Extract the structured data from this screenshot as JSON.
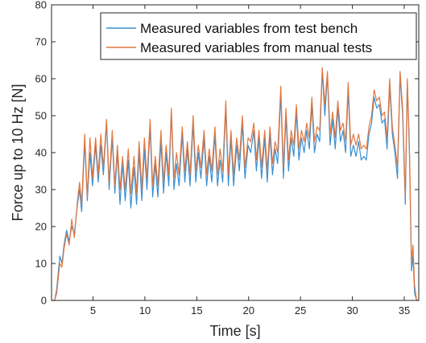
{
  "chart_data": {
    "type": "line",
    "title": "",
    "xlabel": "Time [s]",
    "ylabel": "Force up to 10 Hz [N]",
    "xlim": [
      1,
      36.4
    ],
    "ylim": [
      0,
      80
    ],
    "xticks": [
      5,
      10,
      15,
      20,
      25,
      30,
      35
    ],
    "yticks": [
      0,
      10,
      20,
      30,
      40,
      50,
      60,
      70,
      80
    ],
    "grid": false,
    "legend_position": "top-right",
    "series": [
      {
        "name": "Measured variables from test bench",
        "color": "#3a8fd1",
        "points": [
          [
            1.0,
            0
          ],
          [
            1.3,
            0
          ],
          [
            1.5,
            3
          ],
          [
            1.8,
            12
          ],
          [
            2.0,
            10
          ],
          [
            2.2,
            15
          ],
          [
            2.45,
            19
          ],
          [
            2.7,
            16
          ],
          [
            2.95,
            20
          ],
          [
            3.2,
            18
          ],
          [
            3.5,
            26
          ],
          [
            3.7,
            30
          ],
          [
            3.9,
            24
          ],
          [
            4.2,
            43
          ],
          [
            4.45,
            27
          ],
          [
            4.7,
            40
          ],
          [
            4.95,
            31
          ],
          [
            5.25,
            42
          ],
          [
            5.5,
            32
          ],
          [
            5.75,
            42
          ],
          [
            6.0,
            34
          ],
          [
            6.3,
            48
          ],
          [
            6.55,
            30
          ],
          [
            6.85,
            44
          ],
          [
            7.1,
            29
          ],
          [
            7.35,
            40
          ],
          [
            7.6,
            26
          ],
          [
            7.85,
            37
          ],
          [
            8.1,
            27
          ],
          [
            8.4,
            38
          ],
          [
            8.65,
            25
          ],
          [
            8.95,
            36
          ],
          [
            9.2,
            26
          ],
          [
            9.45,
            40
          ],
          [
            9.7,
            27
          ],
          [
            9.95,
            41
          ],
          [
            10.2,
            30
          ],
          [
            10.5,
            47
          ],
          [
            10.75,
            28
          ],
          [
            11.0,
            37
          ],
          [
            11.25,
            28
          ],
          [
            11.55,
            43
          ],
          [
            11.8,
            29
          ],
          [
            12.05,
            40
          ],
          [
            12.3,
            31
          ],
          [
            12.55,
            51
          ],
          [
            12.8,
            30
          ],
          [
            13.05,
            37
          ],
          [
            13.3,
            31
          ],
          [
            13.6,
            45
          ],
          [
            13.85,
            32
          ],
          [
            14.1,
            41
          ],
          [
            14.35,
            31
          ],
          [
            14.65,
            48
          ],
          [
            14.9,
            32
          ],
          [
            15.15,
            40
          ],
          [
            15.4,
            33
          ],
          [
            15.7,
            44
          ],
          [
            15.95,
            31
          ],
          [
            16.2,
            39
          ],
          [
            16.45,
            32
          ],
          [
            16.75,
            45
          ],
          [
            17.0,
            31
          ],
          [
            17.25,
            38
          ],
          [
            17.5,
            32
          ],
          [
            17.8,
            52
          ],
          [
            18.05,
            31
          ],
          [
            18.3,
            44
          ],
          [
            18.55,
            31
          ],
          [
            18.85,
            42
          ],
          [
            19.1,
            35
          ],
          [
            19.4,
            48
          ],
          [
            19.65,
            33
          ],
          [
            19.95,
            42
          ],
          [
            20.2,
            40
          ],
          [
            20.5,
            46
          ],
          [
            20.75,
            35
          ],
          [
            21.0,
            44
          ],
          [
            21.25,
            33
          ],
          [
            21.55,
            44
          ],
          [
            21.8,
            32
          ],
          [
            22.05,
            45
          ],
          [
            22.3,
            34
          ],
          [
            22.55,
            41
          ],
          [
            22.8,
            37
          ],
          [
            23.1,
            56
          ],
          [
            23.35,
            33
          ],
          [
            23.6,
            50
          ],
          [
            23.85,
            35
          ],
          [
            24.1,
            44
          ],
          [
            24.35,
            39
          ],
          [
            24.6,
            51
          ],
          [
            24.85,
            38
          ],
          [
            25.1,
            44
          ],
          [
            25.35,
            40
          ],
          [
            25.6,
            46
          ],
          [
            25.85,
            41
          ],
          [
            26.1,
            53
          ],
          [
            26.35,
            40
          ],
          [
            26.6,
            45
          ],
          [
            26.85,
            43
          ],
          [
            27.1,
            62
          ],
          [
            27.35,
            50
          ],
          [
            27.6,
            61
          ],
          [
            27.85,
            42
          ],
          [
            28.1,
            49
          ],
          [
            28.35,
            41
          ],
          [
            28.6,
            52
          ],
          [
            28.85,
            43
          ],
          [
            29.1,
            46
          ],
          [
            29.35,
            40
          ],
          [
            29.6,
            57
          ],
          [
            29.85,
            39
          ],
          [
            30.1,
            42
          ],
          [
            30.35,
            39
          ],
          [
            30.6,
            43
          ],
          [
            30.85,
            38
          ],
          [
            31.1,
            39
          ],
          [
            31.35,
            38
          ],
          [
            31.6,
            45
          ],
          [
            31.85,
            48
          ],
          [
            32.1,
            55
          ],
          [
            32.35,
            52
          ],
          [
            32.6,
            53
          ],
          [
            32.85,
            48
          ],
          [
            33.1,
            49
          ],
          [
            33.35,
            41
          ],
          [
            33.6,
            58
          ],
          [
            33.85,
            45
          ],
          [
            34.1,
            40
          ],
          [
            34.35,
            33
          ],
          [
            34.6,
            61
          ],
          [
            34.85,
            50
          ],
          [
            35.1,
            26
          ],
          [
            35.3,
            59
          ],
          [
            35.5,
            40
          ],
          [
            35.7,
            8
          ],
          [
            35.85,
            12
          ],
          [
            36.0,
            2
          ],
          [
            36.2,
            0
          ],
          [
            36.4,
            0
          ]
        ]
      },
      {
        "name": "Measured variables from manual tests",
        "color": "#e2773f",
        "points": [
          [
            1.0,
            0
          ],
          [
            1.3,
            0
          ],
          [
            1.5,
            2
          ],
          [
            1.8,
            10
          ],
          [
            2.0,
            9
          ],
          [
            2.2,
            14
          ],
          [
            2.45,
            18
          ],
          [
            2.7,
            15
          ],
          [
            2.95,
            22
          ],
          [
            3.2,
            17
          ],
          [
            3.5,
            27
          ],
          [
            3.7,
            32
          ],
          [
            3.9,
            26
          ],
          [
            4.2,
            45
          ],
          [
            4.45,
            28
          ],
          [
            4.7,
            44
          ],
          [
            4.95,
            33
          ],
          [
            5.25,
            44
          ],
          [
            5.5,
            34
          ],
          [
            5.75,
            45
          ],
          [
            6.0,
            36
          ],
          [
            6.3,
            49
          ],
          [
            6.55,
            32
          ],
          [
            6.85,
            46
          ],
          [
            7.1,
            31
          ],
          [
            7.35,
            42
          ],
          [
            7.6,
            30
          ],
          [
            7.85,
            39
          ],
          [
            8.1,
            30
          ],
          [
            8.4,
            41
          ],
          [
            8.65,
            29
          ],
          [
            8.95,
            39
          ],
          [
            9.2,
            29
          ],
          [
            9.45,
            43
          ],
          [
            9.7,
            30
          ],
          [
            9.95,
            44
          ],
          [
            10.2,
            33
          ],
          [
            10.5,
            49
          ],
          [
            10.75,
            31
          ],
          [
            11.0,
            39
          ],
          [
            11.25,
            31
          ],
          [
            11.55,
            46
          ],
          [
            11.8,
            32
          ],
          [
            12.05,
            42
          ],
          [
            12.3,
            34
          ],
          [
            12.55,
            52
          ],
          [
            12.8,
            33
          ],
          [
            13.05,
            40
          ],
          [
            13.3,
            34
          ],
          [
            13.6,
            47
          ],
          [
            13.85,
            35
          ],
          [
            14.1,
            43
          ],
          [
            14.35,
            34
          ],
          [
            14.65,
            50
          ],
          [
            14.9,
            35
          ],
          [
            15.15,
            42
          ],
          [
            15.4,
            36
          ],
          [
            15.7,
            46
          ],
          [
            15.95,
            34
          ],
          [
            16.2,
            41
          ],
          [
            16.45,
            35
          ],
          [
            16.75,
            47
          ],
          [
            17.0,
            34
          ],
          [
            17.25,
            41
          ],
          [
            17.5,
            35
          ],
          [
            17.8,
            54
          ],
          [
            18.05,
            34
          ],
          [
            18.3,
            46
          ],
          [
            18.55,
            34
          ],
          [
            18.85,
            44
          ],
          [
            19.1,
            38
          ],
          [
            19.4,
            50
          ],
          [
            19.65,
            36
          ],
          [
            19.95,
            44
          ],
          [
            20.2,
            43
          ],
          [
            20.5,
            48
          ],
          [
            20.75,
            38
          ],
          [
            21.0,
            46
          ],
          [
            21.25,
            36
          ],
          [
            21.55,
            46
          ],
          [
            21.8,
            35
          ],
          [
            22.05,
            47
          ],
          [
            22.3,
            37
          ],
          [
            22.55,
            43
          ],
          [
            22.8,
            40
          ],
          [
            23.1,
            58
          ],
          [
            23.35,
            36
          ],
          [
            23.6,
            52
          ],
          [
            23.85,
            38
          ],
          [
            24.1,
            46
          ],
          [
            24.35,
            42
          ],
          [
            24.6,
            53
          ],
          [
            24.85,
            41
          ],
          [
            25.1,
            46
          ],
          [
            25.35,
            43
          ],
          [
            25.6,
            48
          ],
          [
            25.85,
            44
          ],
          [
            26.1,
            55
          ],
          [
            26.35,
            43
          ],
          [
            26.6,
            47
          ],
          [
            26.85,
            46
          ],
          [
            27.1,
            63
          ],
          [
            27.35,
            53
          ],
          [
            27.6,
            62
          ],
          [
            27.85,
            45
          ],
          [
            28.1,
            51
          ],
          [
            28.35,
            44
          ],
          [
            28.6,
            54
          ],
          [
            28.85,
            46
          ],
          [
            29.1,
            48
          ],
          [
            29.35,
            43
          ],
          [
            29.6,
            59
          ],
          [
            29.85,
            42
          ],
          [
            30.1,
            45
          ],
          [
            30.35,
            42
          ],
          [
            30.6,
            45
          ],
          [
            30.85,
            41
          ],
          [
            31.1,
            42
          ],
          [
            31.35,
            41
          ],
          [
            31.6,
            47
          ],
          [
            31.85,
            50
          ],
          [
            32.1,
            57
          ],
          [
            32.35,
            54
          ],
          [
            32.6,
            55
          ],
          [
            32.85,
            50
          ],
          [
            33.1,
            51
          ],
          [
            33.35,
            44
          ],
          [
            33.6,
            60
          ],
          [
            33.85,
            47
          ],
          [
            34.1,
            42
          ],
          [
            34.35,
            36
          ],
          [
            34.6,
            62
          ],
          [
            34.85,
            52
          ],
          [
            35.1,
            28
          ],
          [
            35.3,
            60
          ],
          [
            35.5,
            42
          ],
          [
            35.7,
            10
          ],
          [
            35.85,
            15
          ],
          [
            36.0,
            4
          ],
          [
            36.2,
            0
          ],
          [
            36.4,
            0
          ]
        ]
      }
    ]
  }
}
